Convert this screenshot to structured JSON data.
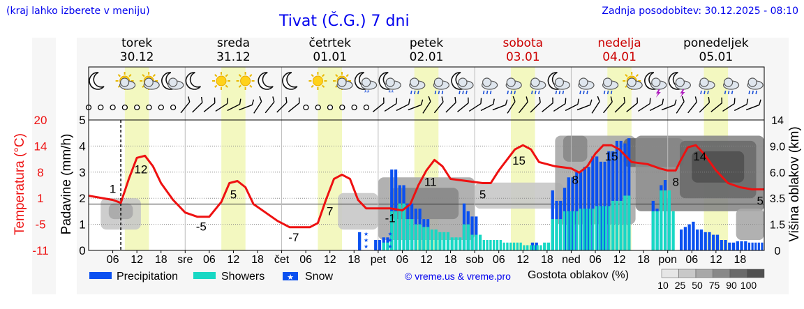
{
  "header": {
    "hint": "(kraj lahko izberete v meniju)",
    "title": "Tivat (Č.G.) 7 dni",
    "updated": "Zadnja posodobitev: 30.12.2025 - 08:10"
  },
  "days": [
    {
      "name": "torek",
      "date": "30.12",
      "weekend": false
    },
    {
      "name": "sreda",
      "date": "31.12",
      "weekend": false
    },
    {
      "name": "četrtek",
      "date": "01.01",
      "weekend": false
    },
    {
      "name": "petek",
      "date": "02.01",
      "weekend": false
    },
    {
      "name": "sobota",
      "date": "03.01",
      "weekend": true
    },
    {
      "name": "nedelja",
      "date": "04.01",
      "weekend": true
    },
    {
      "name": "ponedeljek",
      "date": "05.01",
      "weekend": false
    }
  ],
  "icons": [
    "moon",
    "sun-cloud",
    "sun-cloud",
    "moon-cloud",
    "moon",
    "sun",
    "sun",
    "moon",
    "moon",
    "sun",
    "sun-cloud",
    "moon-cloud-snow",
    "moon-cloud-snow",
    "cloud-rain",
    "cloud-rain",
    "moon-rain",
    "cloud-rain",
    "cloud-rain",
    "cloud-rain",
    "moon-rain",
    "cloud-rain",
    "cloud-rain",
    "sun-cloud",
    "moon-storm",
    "moon-storm",
    "cloud-rain",
    "cloud-rain",
    "cloud-rain"
  ],
  "legend": {
    "precipitation": "Precipitation",
    "showers": "Showers",
    "snow": "Snow",
    "credit": "© vreme.us & vreme.pro",
    "cloud_title": "Gostota oblakov (%)",
    "cloud_levels": [
      "10",
      "25",
      "50",
      "75",
      "90",
      "100"
    ]
  },
  "colors": {
    "precip": "#0a50f0",
    "showers": "#18d8c4",
    "temp": "#ee1111",
    "title": "#0000ee",
    "day_band": "#f3f8c0"
  },
  "chart_data": {
    "type": "line",
    "title": "Tivat (Č.G.) 7 dni",
    "x_unit": "hours from 30.12 00:00",
    "xlim": [
      0,
      168
    ],
    "x_tick_labels": [
      "06",
      "12",
      "18",
      "sre",
      "06",
      "12",
      "18",
      "čet",
      "06",
      "12",
      "18",
      "pet",
      "06",
      "12",
      "18",
      "sob",
      "06",
      "12",
      "18",
      "ned",
      "06",
      "12",
      "18",
      "pon",
      "06",
      "12",
      "18"
    ],
    "left_axis_1": {
      "label": "Temperatura (°C)",
      "ticks": [
        "20",
        "14",
        "8",
        "1",
        "-5",
        "-11"
      ],
      "range": [
        -11,
        20
      ]
    },
    "left_axis_2": {
      "label": "Padavine (mm/h)",
      "ticks": [
        "5",
        "4",
        "3",
        "2",
        "1",
        "0"
      ],
      "range": [
        0,
        5
      ]
    },
    "right_axis": {
      "label": "Višina oblakov (km)",
      "ticks": [
        "14",
        "9.0",
        "6.0",
        "3.5",
        "1.5",
        "0"
      ]
    },
    "current_time_hour": 8,
    "temperature_series": {
      "name": "Temperatura",
      "points": [
        [
          0,
          2
        ],
        [
          3,
          1.5
        ],
        [
          6,
          1
        ],
        [
          8,
          0.3
        ],
        [
          10,
          6
        ],
        [
          12,
          11
        ],
        [
          14,
          11.5
        ],
        [
          16,
          9
        ],
        [
          18,
          5
        ],
        [
          21,
          1
        ],
        [
          24,
          -2
        ],
        [
          27,
          -3
        ],
        [
          30,
          -3
        ],
        [
          33,
          0.5
        ],
        [
          35,
          5
        ],
        [
          37,
          5.5
        ],
        [
          39,
          4
        ],
        [
          41,
          0
        ],
        [
          44,
          -2
        ],
        [
          47,
          -4
        ],
        [
          50,
          -5.5
        ],
        [
          55,
          -5.5
        ],
        [
          57,
          -4.5
        ],
        [
          59,
          1
        ],
        [
          61,
          6
        ],
        [
          63,
          7
        ],
        [
          65,
          6
        ],
        [
          67,
          1
        ],
        [
          69,
          -1
        ],
        [
          72,
          -1
        ],
        [
          75,
          -1
        ],
        [
          78,
          -1.5
        ],
        [
          80,
          0
        ],
        [
          82,
          4.5
        ],
        [
          84,
          8
        ],
        [
          86,
          10.5
        ],
        [
          88,
          9
        ],
        [
          90,
          6
        ],
        [
          94,
          5.5
        ],
        [
          98,
          5
        ],
        [
          100,
          5
        ],
        [
          102,
          8
        ],
        [
          104,
          10.5
        ],
        [
          106,
          13
        ],
        [
          108,
          14
        ],
        [
          110,
          13
        ],
        [
          112,
          10
        ],
        [
          116,
          9
        ],
        [
          120,
          8.5
        ],
        [
          122,
          7.5
        ],
        [
          124,
          9
        ],
        [
          126,
          12
        ],
        [
          128,
          14
        ],
        [
          130,
          14
        ],
        [
          132,
          13
        ],
        [
          135,
          10
        ],
        [
          139,
          9.5
        ],
        [
          142,
          8.5
        ],
        [
          144,
          8
        ],
        [
          146,
          8
        ],
        [
          147,
          10
        ],
        [
          149,
          13.5
        ],
        [
          151,
          14
        ],
        [
          153,
          12
        ],
        [
          156,
          8
        ],
        [
          159,
          5
        ],
        [
          162,
          4
        ],
        [
          165,
          3.5
        ],
        [
          168,
          3.5
        ]
      ]
    },
    "temperature_labels": [
      {
        "hour": 6,
        "text": "1"
      },
      {
        "hour": 13,
        "text": "12"
      },
      {
        "hour": 28,
        "text": "-5"
      },
      {
        "hour": 36,
        "text": "5"
      },
      {
        "hour": 51,
        "text": "-7"
      },
      {
        "hour": 60,
        "text": "7"
      },
      {
        "hour": 75,
        "text": "-1"
      },
      {
        "hour": 85,
        "text": "11"
      },
      {
        "hour": 98,
        "text": "5"
      },
      {
        "hour": 107,
        "text": "15"
      },
      {
        "hour": 121,
        "text": "8"
      },
      {
        "hour": 130,
        "text": "15"
      },
      {
        "hour": 146,
        "text": "8"
      },
      {
        "hour": 152,
        "text": "14"
      },
      {
        "hour": 167,
        "text": "5"
      }
    ],
    "precipitation_bars": [
      {
        "start": 67,
        "end": 68,
        "value": 0.7
      },
      {
        "start": 71,
        "end": 73,
        "value": 0.4
      },
      {
        "start": 73,
        "end": 75,
        "value": 0.5
      },
      {
        "start": 75,
        "end": 77,
        "value": 3.1
      },
      {
        "start": 77,
        "end": 79,
        "value": 2.5
      },
      {
        "start": 79,
        "end": 81,
        "value": 1.8
      },
      {
        "start": 81,
        "end": 83,
        "value": 1.6
      },
      {
        "start": 83,
        "end": 85,
        "value": 1.2
      },
      {
        "start": 93,
        "end": 94,
        "value": 1.8
      },
      {
        "start": 94,
        "end": 95,
        "value": 1.5
      },
      {
        "start": 95,
        "end": 97,
        "value": 1.3
      },
      {
        "start": 110,
        "end": 112,
        "value": 0.3
      },
      {
        "start": 115,
        "end": 116,
        "value": 2.3
      },
      {
        "start": 116,
        "end": 118,
        "value": 1.9
      },
      {
        "start": 118,
        "end": 119,
        "value": 2.4
      },
      {
        "start": 119,
        "end": 121,
        "value": 2.8
      },
      {
        "start": 121,
        "end": 123,
        "value": 3.0
      },
      {
        "start": 123,
        "end": 125,
        "value": 3.2
      },
      {
        "start": 125,
        "end": 127,
        "value": 3.6
      },
      {
        "start": 127,
        "end": 129,
        "value": 3.4
      },
      {
        "start": 129,
        "end": 131,
        "value": 3.8
      },
      {
        "start": 131,
        "end": 133,
        "value": 4.2
      },
      {
        "start": 133,
        "end": 134,
        "value": 4.1
      },
      {
        "start": 134,
        "end": 135,
        "value": 4.3
      },
      {
        "start": 140,
        "end": 141,
        "value": 1.9
      },
      {
        "start": 141,
        "end": 142,
        "value": 1.6
      },
      {
        "start": 142,
        "end": 143,
        "value": 2.5
      },
      {
        "start": 143,
        "end": 144,
        "value": 2.7
      },
      {
        "start": 144,
        "end": 145,
        "value": 2.0
      },
      {
        "start": 147,
        "end": 148,
        "value": 0.8
      },
      {
        "start": 148,
        "end": 149,
        "value": 0.9
      },
      {
        "start": 149,
        "end": 150,
        "value": 1.0
      },
      {
        "start": 150,
        "end": 151,
        "value": 1.1
      },
      {
        "start": 151,
        "end": 153,
        "value": 0.8
      },
      {
        "start": 153,
        "end": 155,
        "value": 0.7
      },
      {
        "start": 155,
        "end": 157,
        "value": 0.6
      },
      {
        "start": 157,
        "end": 159,
        "value": 0.4
      },
      {
        "start": 159,
        "end": 161,
        "value": 0.3
      },
      {
        "start": 161,
        "end": 164,
        "value": 0.35
      },
      {
        "start": 164,
        "end": 168,
        "value": 0.3
      }
    ],
    "showers_bars": [
      {
        "start": 73,
        "end": 75,
        "value": 0.3
      },
      {
        "start": 75,
        "end": 77,
        "value": 1.5
      },
      {
        "start": 77,
        "end": 79,
        "value": 1.8
      },
      {
        "start": 79,
        "end": 81,
        "value": 1.2
      },
      {
        "start": 81,
        "end": 83,
        "value": 1.0
      },
      {
        "start": 83,
        "end": 85,
        "value": 0.9
      },
      {
        "start": 85,
        "end": 87,
        "value": 0.8
      },
      {
        "start": 87,
        "end": 90,
        "value": 0.7
      },
      {
        "start": 90,
        "end": 93,
        "value": 0.5
      },
      {
        "start": 93,
        "end": 95,
        "value": 1.0
      },
      {
        "start": 95,
        "end": 98,
        "value": 0.6
      },
      {
        "start": 98,
        "end": 103,
        "value": 0.4
      },
      {
        "start": 103,
        "end": 108,
        "value": 0.3
      },
      {
        "start": 108,
        "end": 113,
        "value": 0.2
      },
      {
        "start": 113,
        "end": 115,
        "value": 0.3
      },
      {
        "start": 115,
        "end": 118,
        "value": 1.2
      },
      {
        "start": 118,
        "end": 122,
        "value": 1.5
      },
      {
        "start": 122,
        "end": 126,
        "value": 1.6
      },
      {
        "start": 126,
        "end": 130,
        "value": 1.7
      },
      {
        "start": 130,
        "end": 133,
        "value": 1.9
      },
      {
        "start": 133,
        "end": 135,
        "value": 2.1
      },
      {
        "start": 140,
        "end": 142,
        "value": 1.5
      },
      {
        "start": 142,
        "end": 145,
        "value": 2.3
      },
      {
        "start": 145,
        "end": 146,
        "value": 1.5
      }
    ],
    "snow_markers": [
      69,
      75
    ],
    "cloud_density_regions": [
      {
        "start": 3,
        "end": 13,
        "ymin": 0.8,
        "ymax": 2.0,
        "density": 25
      },
      {
        "start": 5,
        "end": 11,
        "ymin": 1.2,
        "ymax": 1.8,
        "density": 50
      },
      {
        "start": 62,
        "end": 72,
        "ymin": 0.8,
        "ymax": 2.2,
        "density": 25
      },
      {
        "start": 72,
        "end": 96,
        "ymin": 0.4,
        "ymax": 2.8,
        "density": 50
      },
      {
        "start": 75,
        "end": 92,
        "ymin": 1.2,
        "ymax": 2.4,
        "density": 75
      },
      {
        "start": 96,
        "end": 118,
        "ymin": 1.6,
        "ymax": 2.6,
        "density": 25
      },
      {
        "start": 116,
        "end": 136,
        "ymin": 1.0,
        "ymax": 4.4,
        "density": 50
      },
      {
        "start": 118,
        "end": 124,
        "ymin": 3.4,
        "ymax": 4.4,
        "density": 75
      },
      {
        "start": 133,
        "end": 148,
        "ymin": 3.2,
        "ymax": 4.3,
        "density": 90
      },
      {
        "start": 136,
        "end": 168,
        "ymin": 1.5,
        "ymax": 4.4,
        "density": 75
      },
      {
        "start": 147,
        "end": 166,
        "ymin": 2.0,
        "ymax": 4.2,
        "density": 90
      },
      {
        "start": 150,
        "end": 163,
        "ymin": 2.6,
        "ymax": 3.8,
        "density": 100
      },
      {
        "start": 161,
        "end": 168,
        "ymin": 0.4,
        "ymax": 1.6,
        "density": 50
      }
    ]
  }
}
